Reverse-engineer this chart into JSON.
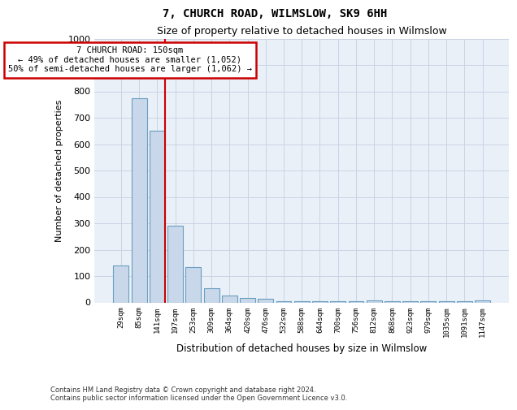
{
  "title": "7, CHURCH ROAD, WILMSLOW, SK9 6HH",
  "subtitle": "Size of property relative to detached houses in Wilmslow",
  "xlabel": "Distribution of detached houses by size in Wilmslow",
  "ylabel": "Number of detached properties",
  "categories": [
    "29sqm",
    "85sqm",
    "141sqm",
    "197sqm",
    "253sqm",
    "309sqm",
    "364sqm",
    "420sqm",
    "476sqm",
    "532sqm",
    "588sqm",
    "644sqm",
    "700sqm",
    "756sqm",
    "812sqm",
    "868sqm",
    "923sqm",
    "979sqm",
    "1035sqm",
    "1091sqm",
    "1147sqm"
  ],
  "values": [
    140,
    775,
    650,
    290,
    135,
    55,
    27,
    18,
    15,
    5,
    5,
    4,
    5,
    5,
    8,
    5,
    5,
    5,
    5,
    5,
    8
  ],
  "bar_color": "#c8d8ea",
  "bar_edge_color": "#6a9ec0",
  "red_line_index": 2,
  "annotation_text": "7 CHURCH ROAD: 150sqm\n← 49% of detached houses are smaller (1,052)\n50% of semi-detached houses are larger (1,062) →",
  "annotation_box_color": "#ffffff",
  "annotation_box_edge_color": "#cc0000",
  "ylim": [
    0,
    1000
  ],
  "yticks": [
    0,
    100,
    200,
    300,
    400,
    500,
    600,
    700,
    800,
    900,
    1000
  ],
  "footer_line1": "Contains HM Land Registry data © Crown copyright and database right 2024.",
  "footer_line2": "Contains public sector information licensed under the Open Government Licence v3.0.",
  "background_color": "#ffffff",
  "plot_bg_color": "#eaf0f8",
  "grid_color": "#c8d4e4"
}
